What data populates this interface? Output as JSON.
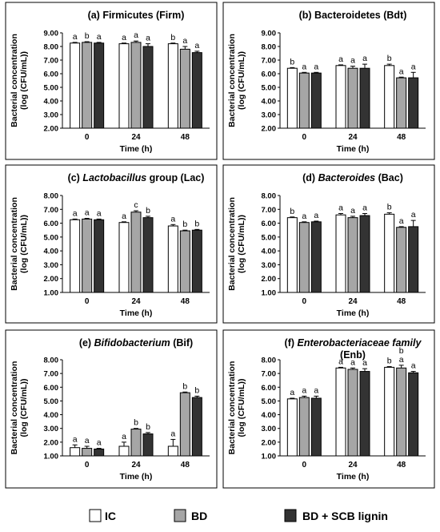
{
  "legend": [
    {
      "label": "IC",
      "color": "#ffffff"
    },
    {
      "label": "BD",
      "color": "#a6a6a6"
    },
    {
      "label": "BD + SCB lignin",
      "color": "#333333"
    }
  ],
  "chart_data": [
    {
      "type": "bar",
      "title_parts": [
        {
          "text": "(a) Firmicutes (Firm)",
          "italic": false
        }
      ],
      "xlabel": "Time (h)",
      "ylabel": [
        "Bacterial concentration",
        "(log (CFU/mL))"
      ],
      "ylim": [
        2.0,
        9.0
      ],
      "yticks": [
        "2.00",
        "3.00",
        "4.00",
        "5.00",
        "6.00",
        "7.00",
        "8.00",
        "9.00"
      ],
      "categories": [
        "0",
        "24",
        "48"
      ],
      "series": [
        {
          "name": "IC",
          "values": [
            8.25,
            8.2,
            8.2
          ],
          "errors": [
            0.05,
            0.05,
            0.05
          ],
          "letters": [
            "a",
            "a",
            "b"
          ]
        },
        {
          "name": "BD",
          "values": [
            8.3,
            8.3,
            7.8
          ],
          "errors": [
            0.05,
            0.1,
            0.2
          ],
          "letters": [
            "b",
            "a",
            "a"
          ]
        },
        {
          "name": "BD + SCB lignin",
          "values": [
            8.25,
            8.0,
            7.55
          ],
          "errors": [
            0.05,
            0.2,
            0.1
          ],
          "letters": [
            "a",
            "a",
            "a"
          ]
        }
      ]
    },
    {
      "type": "bar",
      "title_parts": [
        {
          "text": "(b) Bacteroidetes (Bdt)",
          "italic": false
        }
      ],
      "xlabel": "Time (h)",
      "ylabel": [
        "Bacterial concentration",
        "(log (CFU/mL))"
      ],
      "ylim": [
        2.0,
        9.0
      ],
      "yticks": [
        "2.00",
        "3.00",
        "4.00",
        "5.00",
        "6.00",
        "7.00",
        "8.00",
        "9.00"
      ],
      "categories": [
        "0",
        "24",
        "48"
      ],
      "series": [
        {
          "name": "IC",
          "values": [
            6.4,
            6.6,
            6.6
          ],
          "errors": [
            0.05,
            0.05,
            0.1
          ],
          "letters": [
            "b",
            "a",
            "b"
          ]
        },
        {
          "name": "BD",
          "values": [
            6.05,
            6.4,
            5.7
          ],
          "errors": [
            0.05,
            0.15,
            0.05
          ],
          "letters": [
            "a",
            "a",
            "a"
          ]
        },
        {
          "name": "BD + SCB lignin",
          "values": [
            6.05,
            6.4,
            5.7
          ],
          "errors": [
            0.05,
            0.3,
            0.4
          ],
          "letters": [
            "a",
            "a",
            "a"
          ]
        }
      ]
    },
    {
      "type": "bar",
      "title_parts": [
        {
          "text": "(c) ",
          "italic": false
        },
        {
          "text": "Lactobacillus",
          "italic": true
        },
        {
          "text": " group (Lac)",
          "italic": false
        }
      ],
      "xlabel": "Time (h)",
      "ylabel": [
        "Bacterial concentration",
        "(log (CFU/mL))"
      ],
      "ylim": [
        1.0,
        8.0
      ],
      "yticks": [
        "1.00",
        "2.00",
        "3.00",
        "4.00",
        "5.00",
        "6.00",
        "7.00",
        "8.00"
      ],
      "categories": [
        "0",
        "24",
        "48"
      ],
      "series": [
        {
          "name": "IC",
          "values": [
            6.25,
            6.05,
            5.8
          ],
          "errors": [
            0.05,
            0.05,
            0.1
          ],
          "letters": [
            "a",
            "a",
            "a"
          ]
        },
        {
          "name": "BD",
          "values": [
            6.3,
            6.8,
            5.45
          ],
          "errors": [
            0.05,
            0.1,
            0.05
          ],
          "letters": [
            "a",
            "c",
            "b"
          ]
        },
        {
          "name": "BD + SCB lignin",
          "values": [
            6.25,
            6.4,
            5.5
          ],
          "errors": [
            0.05,
            0.1,
            0.05
          ],
          "letters": [
            "a",
            "b",
            "b"
          ]
        }
      ]
    },
    {
      "type": "bar",
      "title_parts": [
        {
          "text": "(d) ",
          "italic": false
        },
        {
          "text": "Bacteroides",
          "italic": true
        },
        {
          "text": " (Bac)",
          "italic": false
        }
      ],
      "xlabel": "Time (h)",
      "ylabel": [
        "Bacterial concentration",
        "(log (CFU/mL))"
      ],
      "ylim": [
        1.0,
        8.0
      ],
      "yticks": [
        "1.00",
        "2.00",
        "3.00",
        "4.00",
        "5.00",
        "6.00",
        "7.00",
        "8.00"
      ],
      "categories": [
        "0",
        "24",
        "48"
      ],
      "series": [
        {
          "name": "IC",
          "values": [
            6.4,
            6.6,
            6.65
          ],
          "errors": [
            0.05,
            0.1,
            0.1
          ],
          "letters": [
            "b",
            "a",
            "b"
          ]
        },
        {
          "name": "BD",
          "values": [
            6.05,
            6.4,
            5.7
          ],
          "errors": [
            0.05,
            0.1,
            0.05
          ],
          "letters": [
            "a",
            "a",
            "a"
          ]
        },
        {
          "name": "BD + SCB lignin",
          "values": [
            6.1,
            6.55,
            5.75
          ],
          "errors": [
            0.05,
            0.15,
            0.45
          ],
          "letters": [
            "a",
            "a",
            "a"
          ]
        }
      ]
    },
    {
      "type": "bar",
      "title_parts": [
        {
          "text": "(e) ",
          "italic": false
        },
        {
          "text": "Bifidobacterium",
          "italic": true
        },
        {
          "text": " (Bif)",
          "italic": false
        }
      ],
      "xlabel": "Time (h)",
      "ylabel": [
        "Bacterial concentration",
        "(log (CFU/mL))"
      ],
      "ylim": [
        1.0,
        8.0
      ],
      "yticks": [
        "1.00",
        "2.00",
        "3.00",
        "4.00",
        "5.00",
        "6.00",
        "7.00",
        "8.00"
      ],
      "categories": [
        "0",
        "24",
        "48"
      ],
      "series": [
        {
          "name": "IC",
          "values": [
            1.6,
            1.7,
            1.7
          ],
          "errors": [
            0.2,
            0.3,
            0.5
          ],
          "letters": [
            "a",
            "a",
            "a"
          ]
        },
        {
          "name": "BD",
          "values": [
            1.55,
            2.95,
            5.6
          ],
          "errors": [
            0.15,
            0.05,
            0.05
          ],
          "letters": [
            "a",
            "b",
            "b"
          ]
        },
        {
          "name": "BD + SCB lignin",
          "values": [
            1.5,
            2.6,
            5.25
          ],
          "errors": [
            0.05,
            0.1,
            0.1
          ],
          "letters": [
            "a",
            "b",
            "b"
          ]
        }
      ]
    },
    {
      "type": "bar",
      "title_parts": [
        {
          "text": "(f) ",
          "italic": false
        },
        {
          "text": "Enterobacteriaceae family",
          "italic": true
        }
      ],
      "title_line2": "(Enb)",
      "xlabel": "Time (h)",
      "ylabel": [
        "Bacterial concentration",
        "(log (CFU/mL))"
      ],
      "ylim": [
        1.0,
        8.0
      ],
      "yticks": [
        "1.00",
        "2.00",
        "3.00",
        "4.00",
        "5.00",
        "6.00",
        "7.00",
        "8.00"
      ],
      "categories": [
        "0",
        "24",
        "48"
      ],
      "series": [
        {
          "name": "IC",
          "values": [
            5.15,
            7.4,
            7.45
          ],
          "errors": [
            0.05,
            0.05,
            0.05
          ],
          "letters": [
            "a",
            "a",
            "b"
          ]
        },
        {
          "name": "BD",
          "values": [
            5.25,
            7.3,
            7.4
          ],
          "errors": [
            0.1,
            0.1,
            0.2
          ],
          "letters": [
            "a",
            "a",
            "b a"
          ]
        },
        {
          "name": "BD + SCB lignin",
          "values": [
            5.2,
            7.15,
            7.05
          ],
          "errors": [
            0.15,
            0.2,
            0.1
          ],
          "letters": [
            "a",
            "a",
            "a"
          ]
        }
      ]
    }
  ]
}
